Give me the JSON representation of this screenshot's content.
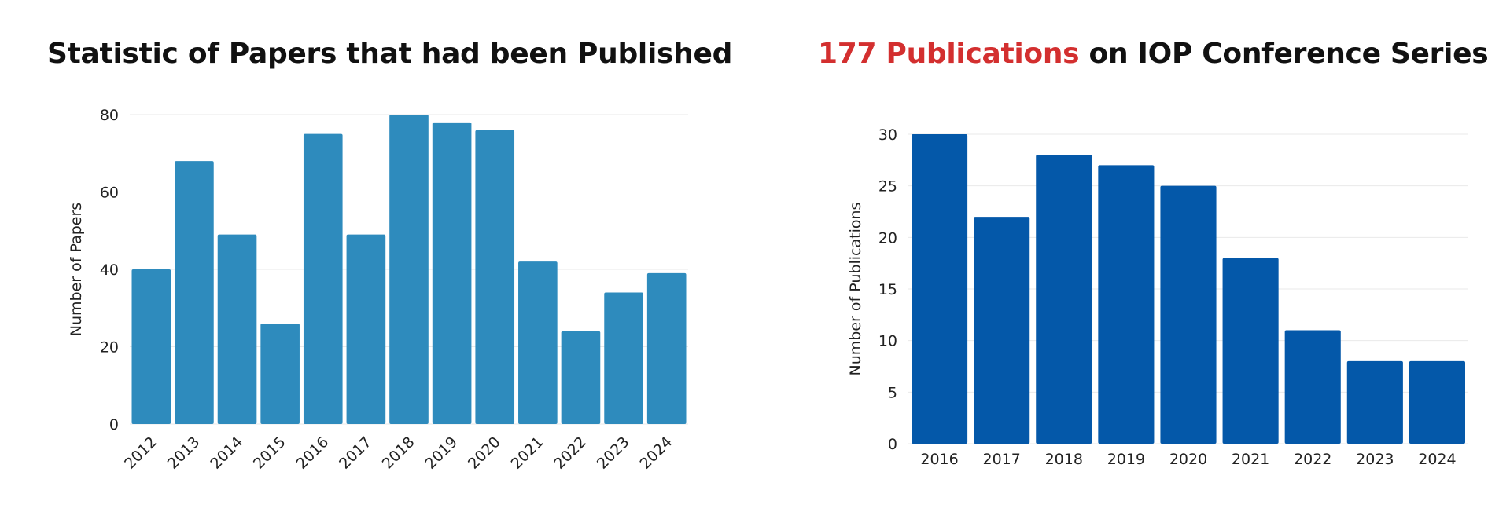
{
  "chart_data": [
    {
      "type": "bar",
      "title": "Statistic of Papers that had been Published",
      "xlabel": "",
      "ylabel": "Number of Papers",
      "ylim": [
        0,
        80
      ],
      "yticks": [
        0,
        20,
        40,
        60,
        80
      ],
      "grid": true,
      "x_tick_rotation": "rotated -45",
      "color": "#2e8bbd",
      "categories": [
        "2012",
        "2013",
        "2014",
        "2015",
        "2016",
        "2017",
        "2018",
        "2019",
        "2020",
        "2021",
        "2022",
        "2023",
        "2024"
      ],
      "values": [
        40,
        68,
        49,
        26,
        75,
        49,
        80,
        78,
        76,
        42,
        24,
        34,
        39
      ]
    },
    {
      "type": "bar",
      "title_highlight": "177 Publications",
      "title_rest": " on IOP Conference Series",
      "highlight_color": "#d32f2f",
      "xlabel": "",
      "ylabel": "Number of Publications",
      "ylim": [
        0,
        30
      ],
      "yticks": [
        0,
        5,
        10,
        15,
        20,
        25,
        30
      ],
      "grid": true,
      "color": "#0458a9",
      "categories": [
        "2016",
        "2017",
        "2018",
        "2019",
        "2020",
        "2021",
        "2022",
        "2023",
        "2024"
      ],
      "values": [
        30,
        22,
        28,
        27,
        25,
        18,
        11,
        8,
        8
      ]
    }
  ]
}
